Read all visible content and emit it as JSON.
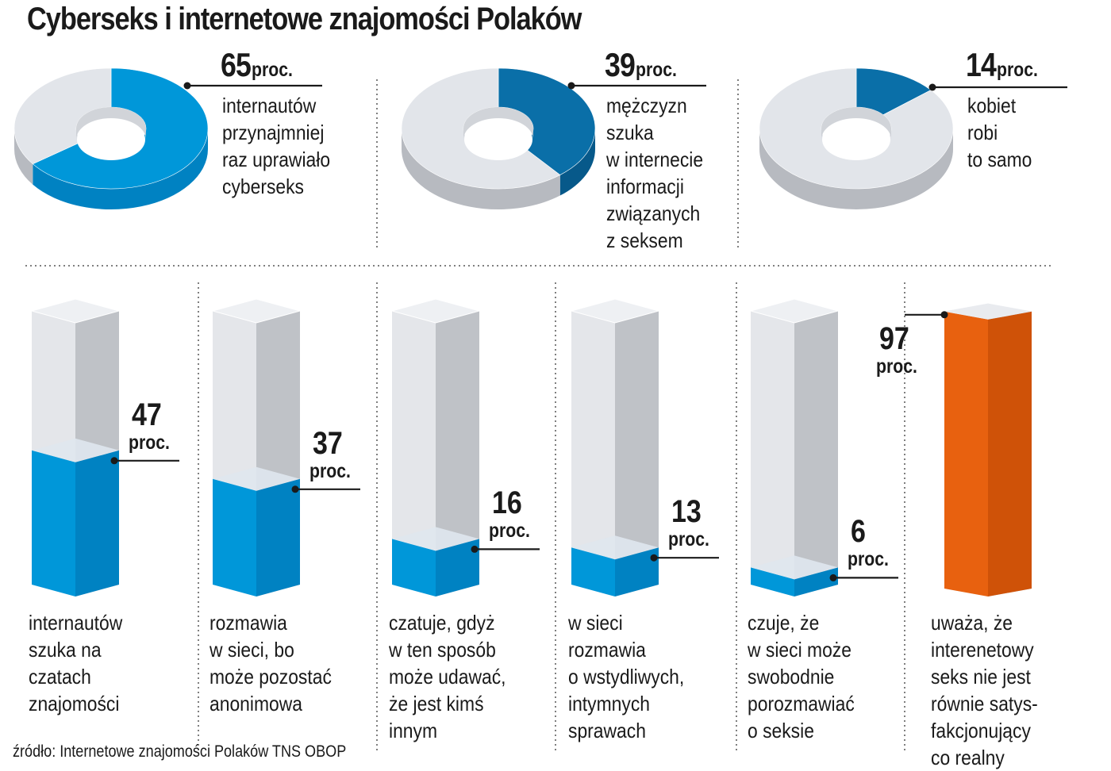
{
  "title": "Cyberseks i internetowe znajomości Polaków",
  "source": "źródło: Internetowe znajomości Polaków TNS OBOP",
  "colors": {
    "blue_light": "#0097d9",
    "blue_dark": "#0a6fa8",
    "blue_mid": "#0082c2",
    "orange": "#e8610f",
    "orange_dark": "#cf5208",
    "gray_light": "#e2e5ea",
    "gray_dark": "#b7bac0"
  },
  "chart_data": [
    {
      "type": "pie",
      "title": "",
      "slices": [
        {
          "value": 65,
          "label": "65",
          "unit": "proc.",
          "description": [
            "internautów",
            "przynajmniej",
            "raz uprawiało",
            "cyberseks"
          ]
        },
        {
          "value": 39,
          "label": "39",
          "unit": "proc.",
          "description": [
            "mężczyzn",
            "szuka",
            "w internecie",
            "informacji",
            "związanych",
            "z seksem"
          ]
        },
        {
          "value": 14,
          "label": "14",
          "unit": "proc.",
          "description": [
            "kobiet",
            "robi",
            "to samo"
          ]
        }
      ]
    },
    {
      "type": "bar",
      "title": "",
      "ylim": [
        0,
        100
      ],
      "bars": [
        {
          "value": 47,
          "label": "47",
          "unit": "proc.",
          "description": [
            "internautów",
            "szuka na",
            "czatach",
            "znajomości"
          ]
        },
        {
          "value": 37,
          "label": "37",
          "unit": "proc.",
          "description": [
            "rozmawia",
            "w sieci, bo",
            "może pozostać",
            "anonimowa"
          ]
        },
        {
          "value": 16,
          "label": "16",
          "unit": "proc.",
          "description": [
            "czatuje, gdyż",
            "w ten sposób",
            "może udawać,",
            "że jest kimś",
            "innym"
          ]
        },
        {
          "value": 13,
          "label": "13",
          "unit": "proc.",
          "description": [
            "w sieci",
            "rozmawia",
            "o wstydliwych,",
            "intymnych",
            "sprawach"
          ]
        },
        {
          "value": 6,
          "label": "6",
          "unit": "proc.",
          "description": [
            "czuje, że",
            "w sieci może",
            "swobodnie",
            "porozmawiać",
            "o seksie"
          ]
        },
        {
          "value": 97,
          "label": "97",
          "unit": "proc.",
          "description": [
            "uważa, że",
            "interenetowy",
            "seks nie jest",
            "równie satys-",
            "fakcjonujący",
            "co realny"
          ]
        }
      ]
    }
  ]
}
